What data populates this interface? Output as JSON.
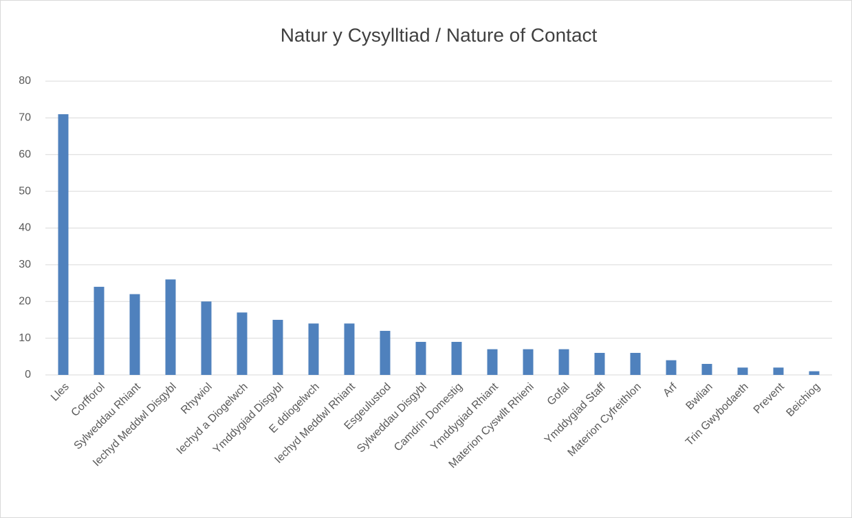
{
  "chart_data": {
    "type": "bar",
    "title": "Natur y Cysylltiad / Nature of Contact",
    "categories": [
      "Lles",
      "Corfforol",
      "Sylweddau Rhiant",
      "Iechyd Meddwl Disgybl",
      "Rhywiol",
      "Iechyd a Diogelwch",
      "Ymddygiad Disgybl",
      "E ddiogelwch",
      "Iechyd Meddwl Rhiant",
      "Esgeulustod",
      "Sylweddau Disgybl",
      "Camdrin Domestig",
      "Ymddygiad Rhiant",
      "Materion Cyswllt Rhieni",
      "Gofal",
      "Ymddygiad Staff",
      "Materion Cyfreithlon",
      "Arf",
      "Bwlian",
      "Trin Gwybodaeth",
      "Prevent",
      "Beichiog"
    ],
    "values": [
      71,
      24,
      22,
      26,
      20,
      17,
      15,
      14,
      14,
      12,
      9,
      9,
      7,
      7,
      7,
      6,
      6,
      4,
      3,
      2,
      2,
      1
    ],
    "color": "#4f81bd",
    "ylim": [
      0,
      80
    ],
    "yticks": [
      0,
      10,
      20,
      30,
      40,
      50,
      60,
      70,
      80
    ],
    "grid": true
  }
}
